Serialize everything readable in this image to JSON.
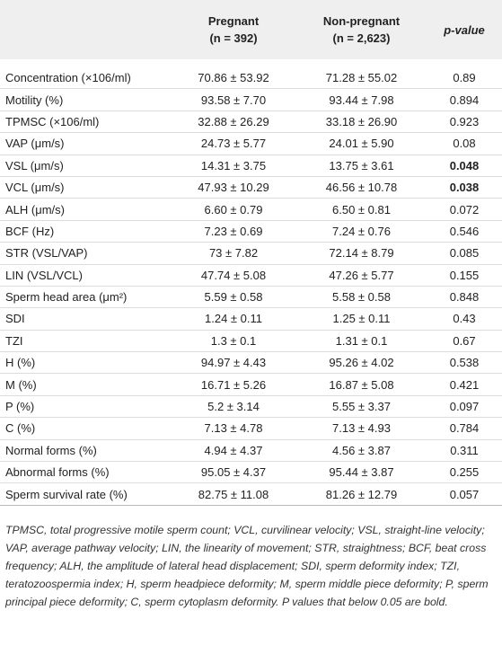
{
  "table": {
    "header": [
      {
        "line1": ""
      },
      {
        "line1": "Pregnant",
        "line2": "(n = 392)"
      },
      {
        "line1": "Non-pregnant",
        "line2": "(n = 2,623)"
      },
      {
        "line1": "p-value"
      }
    ],
    "rows": [
      {
        "label": "Concentration (×106/ml)",
        "pregnant": "70.86 ± 53.92",
        "non_pregnant": "71.28 ± 55.02",
        "p_value": "0.89"
      },
      {
        "label": "Motility (%)",
        "pregnant": "93.58 ± 7.70",
        "non_pregnant": "93.44 ± 7.98",
        "p_value": "0.894"
      },
      {
        "label": "TPMSC (×106/ml)",
        "pregnant": "32.88 ± 26.29",
        "non_pregnant": "33.18 ± 26.90",
        "p_value": "0.923"
      },
      {
        "label": "VAP (μm/s)",
        "pregnant": "24.73 ± 5.77",
        "non_pregnant": "24.01 ± 5.90",
        "p_value": "0.08"
      },
      {
        "label": "VSL (μm/s)",
        "pregnant": "14.31 ± 3.75",
        "non_pregnant": "13.75 ± 3.61",
        "p_value": "0.048",
        "p_bold": true
      },
      {
        "label": "VCL (μm/s)",
        "pregnant": "47.93 ± 10.29",
        "non_pregnant": "46.56 ± 10.78",
        "p_value": "0.038",
        "p_bold": true
      },
      {
        "label": "ALH (μm/s)",
        "pregnant": "6.60 ± 0.79",
        "non_pregnant": "6.50 ± 0.81",
        "p_value": "0.072"
      },
      {
        "label": "BCF (Hz)",
        "pregnant": "7.23 ± 0.69",
        "non_pregnant": "7.24 ± 0.76",
        "p_value": "0.546"
      },
      {
        "label": "STR (VSL/VAP)",
        "pregnant": "73 ± 7.82",
        "non_pregnant": "72.14 ± 8.79",
        "p_value": "0.085"
      },
      {
        "label": "LIN (VSL/VCL)",
        "pregnant": "47.74 ± 5.08",
        "non_pregnant": "47.26 ± 5.77",
        "p_value": "0.155"
      },
      {
        "label": "Sperm head area (μm²)",
        "pregnant": "5.59 ± 0.58",
        "non_pregnant": "5.58 ± 0.58",
        "p_value": "0.848"
      },
      {
        "label": "SDI",
        "pregnant": "1.24 ± 0.11",
        "non_pregnant": "1.25 ± 0.11",
        "p_value": "0.43"
      },
      {
        "label": "TZI",
        "pregnant": "1.3 ± 0.1",
        "non_pregnant": "1.31 ± 0.1",
        "p_value": "0.67"
      },
      {
        "label": "H (%)",
        "pregnant": "94.97 ± 4.43",
        "non_pregnant": "95.26 ± 4.02",
        "p_value": "0.538"
      },
      {
        "label": "M (%)",
        "pregnant": "16.71 ± 5.26",
        "non_pregnant": "16.87 ± 5.08",
        "p_value": "0.421"
      },
      {
        "label": "P (%)",
        "pregnant": "5.2 ± 3.14",
        "non_pregnant": "5.55 ± 3.37",
        "p_value": "0.097"
      },
      {
        "label": "C (%)",
        "pregnant": "7.13 ± 4.78",
        "non_pregnant": "7.13 ± 4.93",
        "p_value": "0.784"
      },
      {
        "label": "Normal forms (%)",
        "pregnant": "4.94 ± 4.37",
        "non_pregnant": "4.56 ± 3.87",
        "p_value": "0.311"
      },
      {
        "label": "Abnormal forms (%)",
        "pregnant": "95.05 ± 4.37",
        "non_pregnant": "95.44 ± 3.87",
        "p_value": "0.255"
      },
      {
        "label": "Sperm survival rate (%)",
        "pregnant": "82.75 ± 11.08",
        "non_pregnant": "81.26 ± 12.79",
        "p_value": "0.057"
      }
    ]
  },
  "footnote": "TPMSC, total progressive motile sperm count; VCL, curvilinear velocity; VSL, straight-line velocity; VAP, average pathway velocity; LIN, the linearity of movement; STR, straightness; BCF, beat cross frequency; ALH, the amplitude of lateral head displacement; SDI, sperm deformity index; TZI, teratozoospermia index; H, sperm headpiece deformity; M, sperm middle piece deformity; P, sperm principal piece deformity; C, sperm cytoplasm deformity. P values that below 0.05 are bold."
}
